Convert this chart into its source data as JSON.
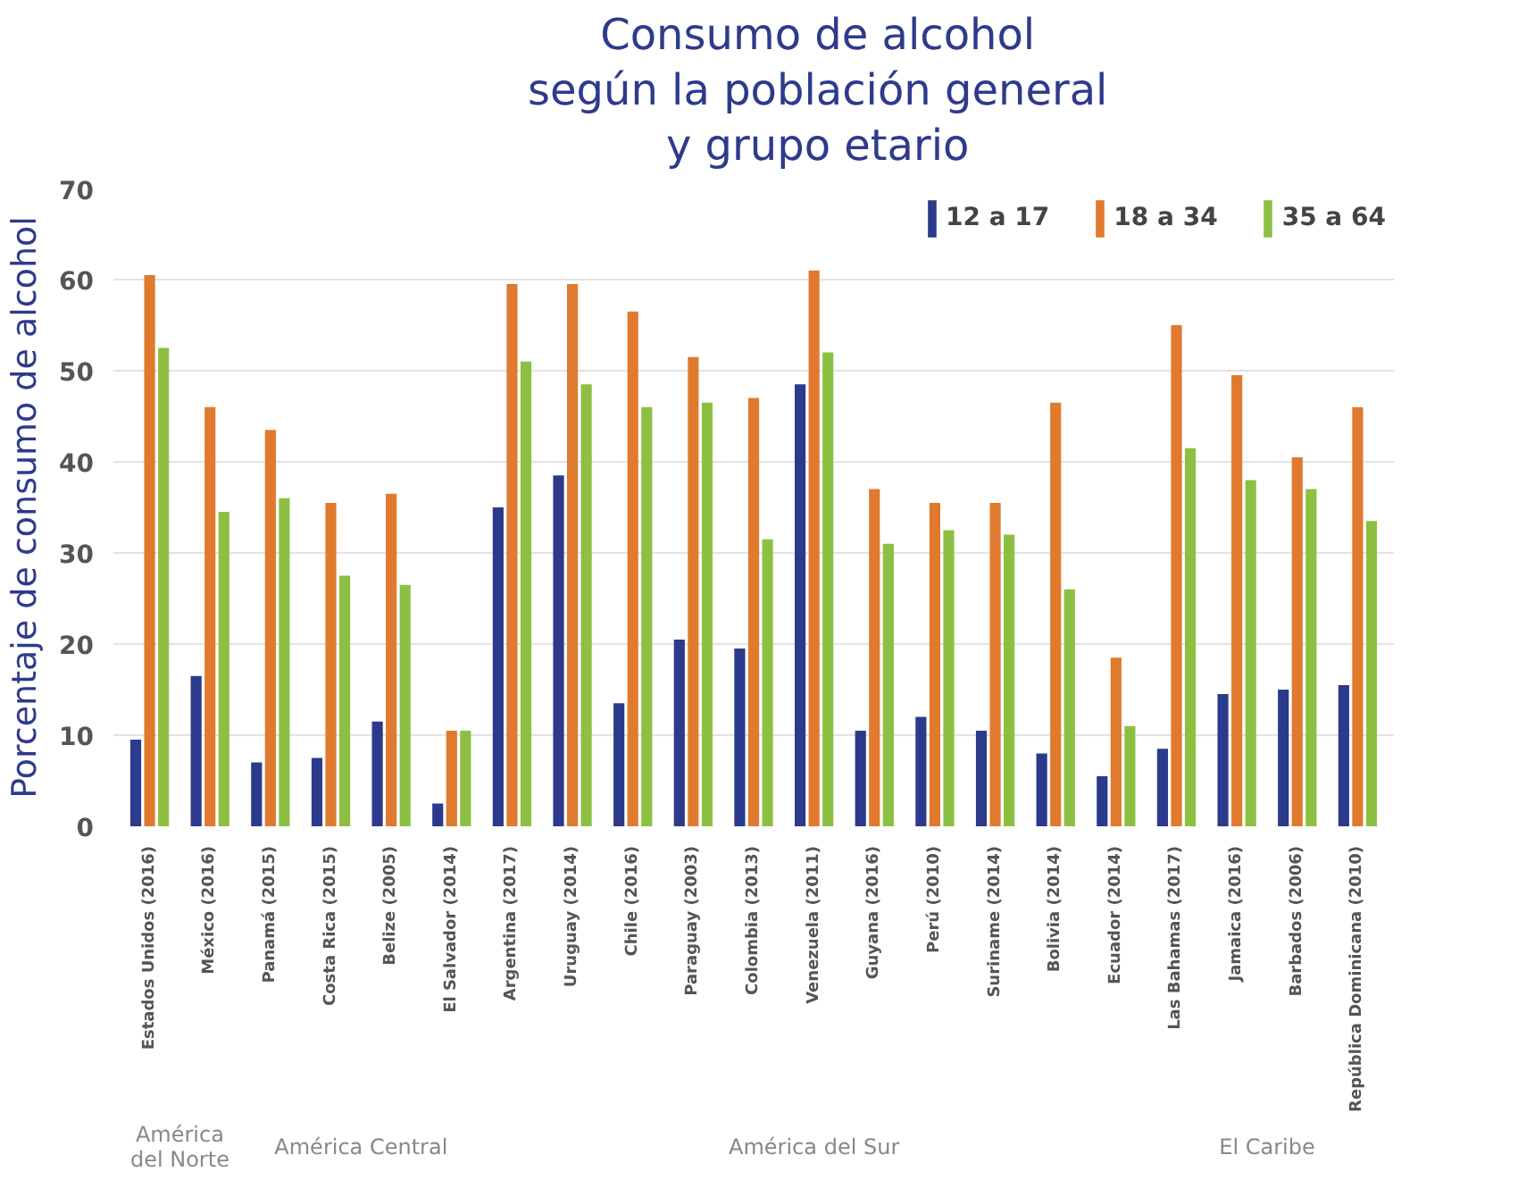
{
  "chart_data": {
    "type": "bar",
    "title": "Consumo de alcohol\nsegún la población general\ny grupo etario",
    "ylabel": "Porcentaje de consumo de alcohol",
    "categories": [
      "Estados Unidos (2016)",
      "México (2016)",
      "Panamá (2015)",
      "Costa Rica (2015)",
      "Belize (2005)",
      "El Salvador (2014)",
      "Argentina (2017)",
      "Uruguay (2014)",
      "Chile (2016)",
      "Paraguay (2003)",
      "Colombia (2013)",
      "Venezuela (2011)",
      "Guyana (2016)",
      "Perú (2010)",
      "Suriname (2014)",
      "Bolivia (2014)",
      "Ecuador (2014)",
      "Las Bahamas (2017)",
      "Jamaica (2016)",
      "Barbados (2006)",
      "República Dominicana (2010)"
    ],
    "series": [
      {
        "name": "12 a 17",
        "color": "#2b3a8a",
        "values": [
          9.5,
          16.5,
          7,
          7.5,
          11.5,
          2.5,
          35,
          38.5,
          13.5,
          20.5,
          19.5,
          48.5,
          10.5,
          12,
          10.5,
          8,
          5.5,
          8.5,
          14.5,
          15,
          15.5
        ]
      },
      {
        "name": "18 a 34",
        "color": "#e07a2e",
        "values": [
          60.5,
          46,
          43.5,
          35.5,
          36.5,
          10.5,
          59.5,
          59.5,
          56.5,
          51.5,
          47,
          61,
          37,
          35.5,
          35.5,
          46.5,
          18.5,
          55,
          49.5,
          40.5,
          46
        ]
      },
      {
        "name": "35 a 64",
        "color": "#8dc042",
        "values": [
          52.5,
          34.5,
          36,
          27.5,
          26.5,
          10.5,
          51,
          48.5,
          46,
          46.5,
          31.5,
          52,
          31,
          32.5,
          32,
          26,
          11,
          41.5,
          38,
          37,
          33.5
        ]
      }
    ],
    "ylim": [
      0,
      70
    ],
    "yticks": [
      0,
      10,
      20,
      30,
      40,
      50,
      60,
      70
    ],
    "grid": "y",
    "legend": "top right",
    "annotations": [
      "América\ndel Norte",
      "América Central",
      "América del Sur",
      "El Caribe"
    ]
  }
}
